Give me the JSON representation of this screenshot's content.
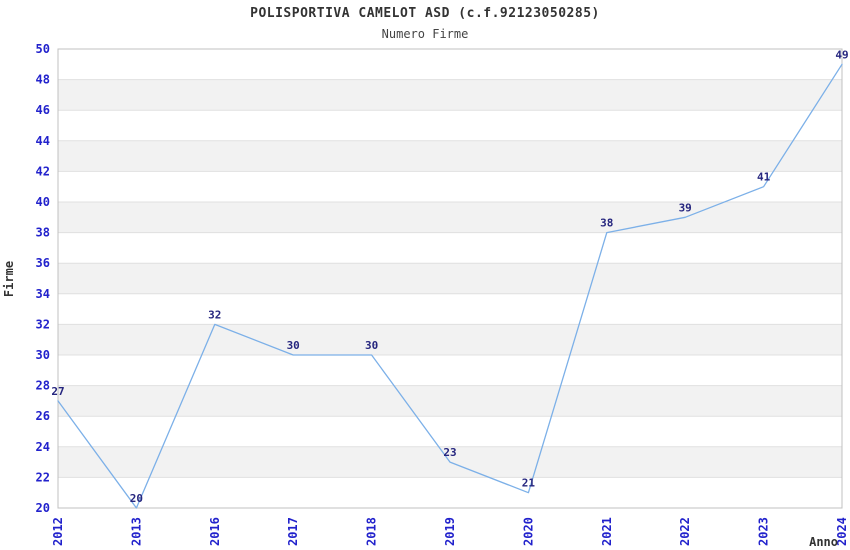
{
  "chart_data": {
    "type": "line",
    "title": "POLISPORTIVA CAMELOT ASD (c.f.92123050285)",
    "subtitle": "Numero Firme",
    "xlabel": "Anno",
    "ylabel": "Firme",
    "categories": [
      "2012",
      "2013",
      "2016",
      "2017",
      "2018",
      "2019",
      "2020",
      "2021",
      "2022",
      "2023",
      "2024"
    ],
    "values": [
      27,
      20,
      32,
      30,
      30,
      23,
      21,
      38,
      39,
      41,
      49
    ],
    "ylim": [
      20,
      50
    ],
    "ytick_step": 2,
    "grid": true,
    "legend": false,
    "bands_alternating": true,
    "colors": {
      "line": "#7cb0e8",
      "tick_label": "#2222cc",
      "data_label": "#26267f",
      "band": "#f2f2f2",
      "gridline": "#e0e0e0",
      "plot_border": "#c0c0c0",
      "title_text": "#333333"
    }
  }
}
